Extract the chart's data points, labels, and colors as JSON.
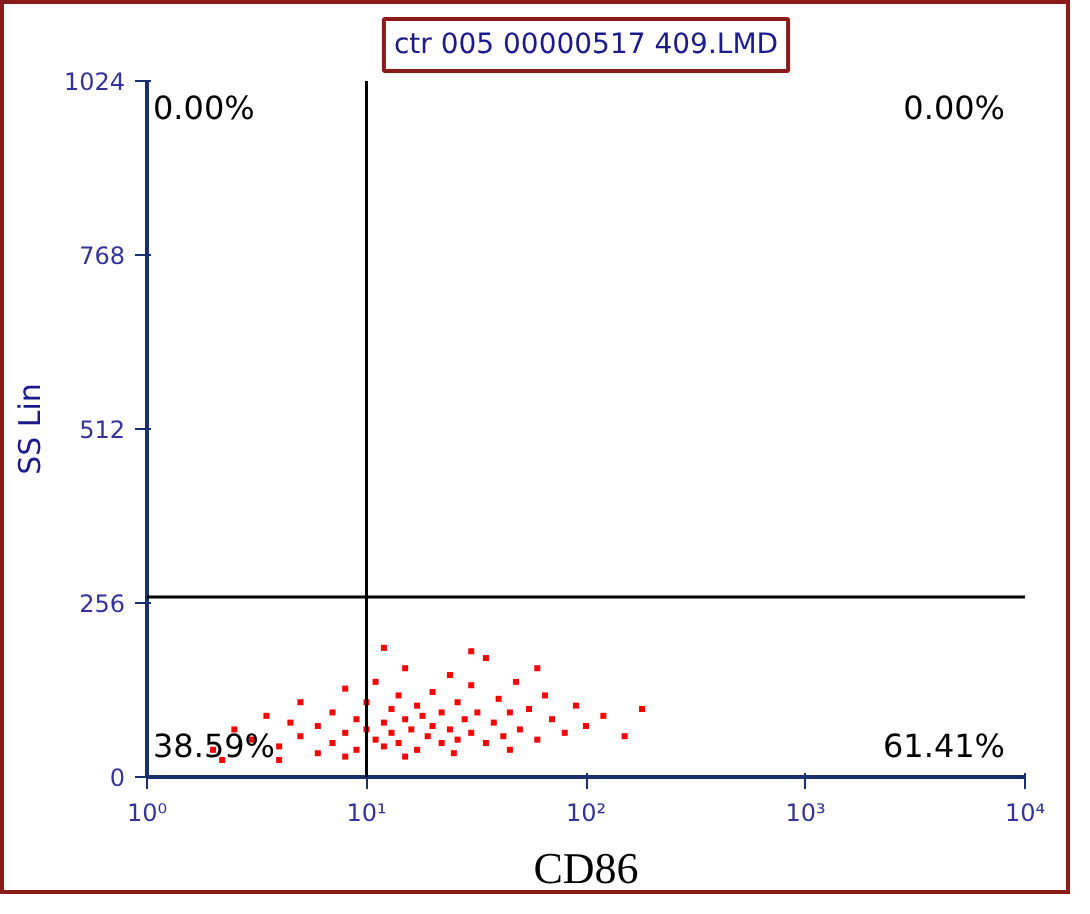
{
  "chart_data": {
    "type": "scatter",
    "title": "ctr 005 00000517 409.LMD",
    "xlabel": "CD86",
    "ylabel": "SS Lin",
    "log": "x",
    "xlim": [
      1,
      10000
    ],
    "ylim": [
      0,
      1024
    ],
    "xticks": [
      {
        "value": 1,
        "label": "10⁰"
      },
      {
        "value": 10,
        "label": "10¹"
      },
      {
        "value": 100,
        "label": "10²"
      },
      {
        "value": 1000,
        "label": "10³"
      },
      {
        "value": 10000,
        "label": "10⁴"
      }
    ],
    "yticks": [
      0,
      256,
      512,
      768,
      1024
    ],
    "grid": false,
    "marker": "square",
    "series": [
      {
        "color": "#ff0000",
        "x": [
          2.0,
          2.5,
          3,
          3.5,
          4,
          4.5,
          5,
          5,
          6,
          6,
          7,
          7,
          8,
          8,
          9,
          9,
          10,
          10,
          11,
          11,
          12,
          12,
          13,
          13,
          14,
          14,
          15,
          15,
          16,
          17,
          17,
          18,
          19,
          20,
          20,
          22,
          22,
          24,
          24,
          26,
          26,
          28,
          30,
          30,
          32,
          35,
          35,
          38,
          40,
          42,
          45,
          48,
          50,
          55,
          60,
          65,
          70,
          80,
          90,
          100,
          120,
          150,
          180,
          2.2,
          4,
          8,
          15,
          25,
          45,
          12,
          30,
          60
        ],
        "values": [
          40,
          70,
          55,
          90,
          45,
          80,
          60,
          110,
          35,
          75,
          95,
          50,
          65,
          130,
          40,
          85,
          70,
          110,
          55,
          140,
          80,
          45,
          100,
          65,
          120,
          50,
          85,
          160,
          70,
          40,
          105,
          90,
          60,
          125,
          75,
          50,
          95,
          150,
          70,
          110,
          55,
          85,
          135,
          65,
          95,
          50,
          175,
          80,
          115,
          60,
          95,
          140,
          70,
          100,
          55,
          120,
          85,
          65,
          105,
          75,
          90,
          60,
          100,
          25,
          25,
          30,
          30,
          35,
          40,
          190,
          185,
          160
        ]
      }
    ],
    "ref_lines": [
      {
        "axis": "x",
        "value": 10,
        "color": "#000000"
      },
      {
        "axis": "y",
        "value": 265,
        "color": "#000000"
      }
    ],
    "annotations": [
      "0.00%",
      "0.00%",
      "38.59%",
      "61.41%"
    ]
  }
}
